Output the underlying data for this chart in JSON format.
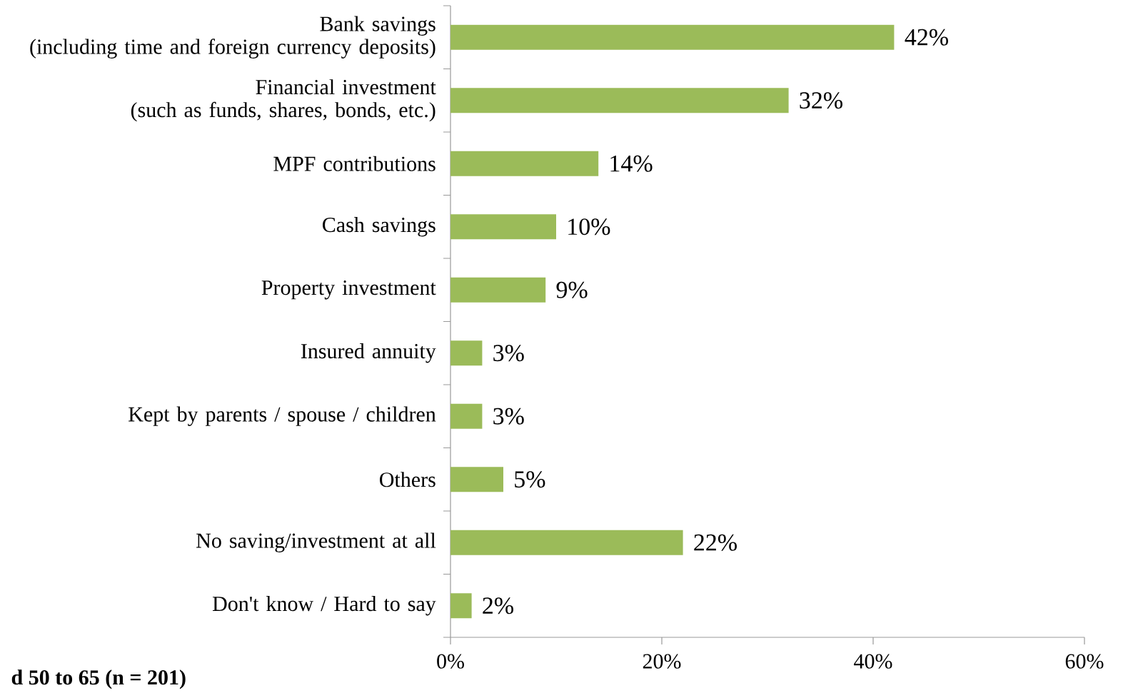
{
  "chart_data": {
    "type": "bar",
    "orientation": "horizontal",
    "categories": [
      "Bank savings\n(including time and foreign currency deposits)",
      "Financial investment\n(such as funds, shares, bonds, etc.)",
      "MPF contributions",
      "Cash savings",
      "Property investment",
      "Insured annuity",
      "Kept by parents / spouse / children",
      "Others",
      "No saving/investment at all",
      "Don't know / Hard to say"
    ],
    "values": [
      42,
      32,
      14,
      10,
      9,
      3,
      3,
      5,
      22,
      2
    ],
    "value_labels": [
      "42%",
      "32%",
      "14%",
      "10%",
      "9%",
      "3%",
      "3%",
      "5%",
      "22%",
      "2%"
    ],
    "color": "#9bbb59",
    "xlim": [
      0,
      60
    ],
    "xticks": [
      {
        "value": 0,
        "label": "0%"
      },
      {
        "value": 20,
        "label": "20%"
      },
      {
        "value": 40,
        "label": "40%"
      },
      {
        "value": 60,
        "label": "60%"
      }
    ],
    "grid": false,
    "annotations": [
      "d 50 to 65 (n = 201)"
    ]
  }
}
